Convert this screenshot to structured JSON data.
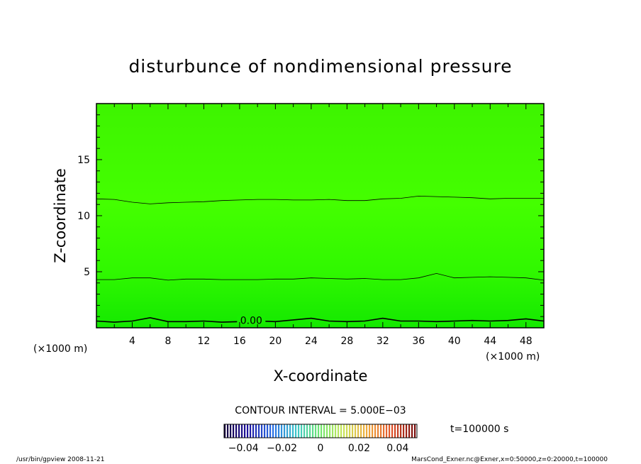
{
  "chart_data": {
    "type": "heatmap",
    "title": "disturbunce of nondimensional pressure",
    "xlabel": "X-coordinate",
    "ylabel": "Z-coordinate",
    "x_unit": "(×1000 m)",
    "y_unit": "(×1000 m)",
    "xlim": [
      0,
      50
    ],
    "ylim": [
      0,
      20
    ],
    "x_ticks": [
      4,
      8,
      12,
      16,
      20,
      24,
      28,
      32,
      36,
      40,
      44,
      48
    ],
    "y_ticks": [
      5,
      10,
      15
    ],
    "contours": [
      {
        "label": "0.00",
        "label_x": 17.3,
        "points": [
          [
            0,
            0.6
          ],
          [
            2,
            0.5
          ],
          [
            4,
            0.6
          ],
          [
            6,
            0.9
          ],
          [
            8,
            0.55
          ],
          [
            10,
            0.55
          ],
          [
            12,
            0.6
          ],
          [
            14,
            0.5
          ],
          [
            16,
            0.55
          ],
          [
            18,
            0.6
          ],
          [
            20,
            0.55
          ],
          [
            22,
            0.7
          ],
          [
            24,
            0.85
          ],
          [
            26,
            0.6
          ],
          [
            28,
            0.55
          ],
          [
            30,
            0.6
          ],
          [
            32,
            0.85
          ],
          [
            34,
            0.6
          ],
          [
            36,
            0.6
          ],
          [
            38,
            0.55
          ],
          [
            40,
            0.6
          ],
          [
            42,
            0.65
          ],
          [
            44,
            0.6
          ],
          [
            46,
            0.65
          ],
          [
            48,
            0.8
          ],
          [
            50,
            0.6
          ]
        ]
      },
      {
        "label": "",
        "points": [
          [
            0,
            4.3
          ],
          [
            2,
            4.3
          ],
          [
            4,
            4.45
          ],
          [
            6,
            4.45
          ],
          [
            8,
            4.25
          ],
          [
            10,
            4.35
          ],
          [
            12,
            4.35
          ],
          [
            14,
            4.3
          ],
          [
            16,
            4.3
          ],
          [
            18,
            4.3
          ],
          [
            20,
            4.35
          ],
          [
            22,
            4.35
          ],
          [
            24,
            4.45
          ],
          [
            26,
            4.4
          ],
          [
            28,
            4.35
          ],
          [
            30,
            4.4
          ],
          [
            32,
            4.3
          ],
          [
            34,
            4.3
          ],
          [
            36,
            4.45
          ],
          [
            38,
            4.85
          ],
          [
            40,
            4.45
          ],
          [
            42,
            4.5
          ],
          [
            44,
            4.55
          ],
          [
            46,
            4.5
          ],
          [
            48,
            4.45
          ],
          [
            50,
            4.25
          ]
        ]
      },
      {
        "label": "",
        "points": [
          [
            0,
            11.5
          ],
          [
            2,
            11.45
          ],
          [
            4,
            11.2
          ],
          [
            6,
            11.05
          ],
          [
            8,
            11.15
          ],
          [
            10,
            11.2
          ],
          [
            12,
            11.25
          ],
          [
            14,
            11.35
          ],
          [
            16,
            11.4
          ],
          [
            18,
            11.45
          ],
          [
            20,
            11.45
          ],
          [
            22,
            11.4
          ],
          [
            24,
            11.4
          ],
          [
            26,
            11.45
          ],
          [
            28,
            11.35
          ],
          [
            30,
            11.35
          ],
          [
            32,
            11.5
          ],
          [
            34,
            11.55
          ],
          [
            36,
            11.75
          ],
          [
            38,
            11.7
          ],
          [
            40,
            11.65
          ],
          [
            42,
            11.6
          ],
          [
            44,
            11.5
          ],
          [
            46,
            11.55
          ],
          [
            48,
            11.55
          ],
          [
            50,
            11.55
          ]
        ]
      }
    ],
    "colorbar": {
      "ticks": [
        "−0.04",
        "−0.02",
        "0",
        "0.02",
        "0.04"
      ],
      "tick_values": [
        -0.04,
        -0.02,
        0,
        0.02,
        0.04
      ],
      "range": [
        -0.05,
        0.05
      ]
    },
    "contour_interval": "CONTOUR INTERVAL = 5.000E−03",
    "time_label": "t=100000 s",
    "footer_left": "/usr/bin/gpview   2008-11-21",
    "footer_right": "MarsCond_Exner.nc@Exner,x=0:50000,z=0:20000,t=100000"
  },
  "colors": {
    "field_top": "#46ff00",
    "field_bottom": "#18ee00",
    "contour": "#000000"
  }
}
